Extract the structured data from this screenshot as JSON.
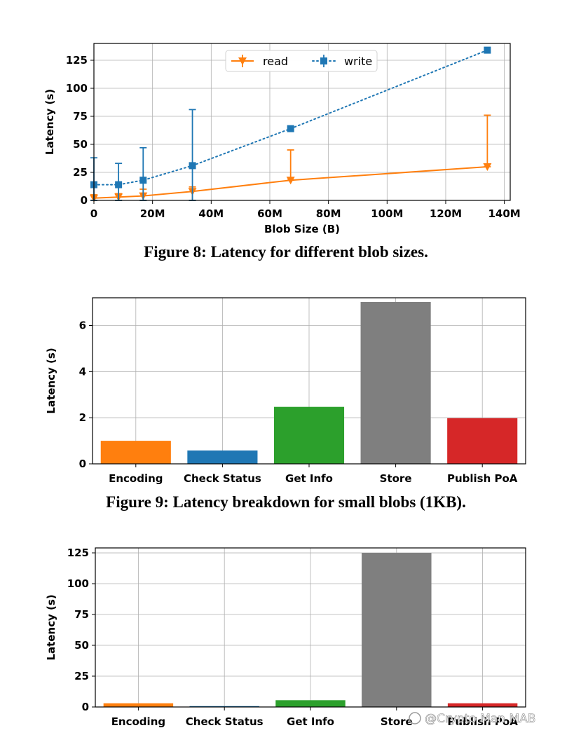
{
  "chart_data": [
    {
      "type": "line",
      "title": "",
      "caption": "Figure 8: Latency for different blob sizes.",
      "xlabel": "Blob Size (B)",
      "ylabel": "Latency (s)",
      "xlim": [
        0,
        142000000
      ],
      "ylim": [
        0,
        140
      ],
      "xticks": [
        0,
        20000000,
        40000000,
        60000000,
        80000000,
        100000000,
        120000000,
        140000000
      ],
      "xtick_labels": [
        "0",
        "20M",
        "40M",
        "60M",
        "80M",
        "100M",
        "120M",
        "140M"
      ],
      "yticks": [
        0,
        25,
        50,
        75,
        100,
        125
      ],
      "ytick_labels": [
        "0",
        "25",
        "50",
        "75",
        "100",
        "125"
      ],
      "grid": true,
      "legend_position": "top-center",
      "series": [
        {
          "name": "read",
          "color": "#ff7f0e",
          "marker": "triangle-down",
          "linestyle": "solid",
          "x": [
            0,
            8400000,
            16800000,
            33600000,
            67100000,
            134200000
          ],
          "y": [
            2,
            3,
            4,
            8,
            18,
            30
          ],
          "err_low": [
            0,
            0,
            0,
            0,
            18,
            30
          ],
          "err_high": [
            5,
            6,
            10,
            12,
            45,
            76
          ]
        },
        {
          "name": "write",
          "color": "#1f77b4",
          "marker": "square",
          "linestyle": "dotted",
          "x": [
            0,
            8400000,
            16800000,
            33600000,
            67100000,
            134200000
          ],
          "y": [
            14,
            14,
            18,
            31,
            64,
            134
          ],
          "err_low": [
            0,
            0,
            0,
            0,
            64,
            134
          ],
          "err_high": [
            38,
            33,
            47,
            81,
            64,
            134
          ]
        }
      ]
    },
    {
      "type": "bar",
      "title": "",
      "caption": "Figure 9: Latency breakdown for small blobs (1KB).",
      "xlabel": "",
      "ylabel": "Latency (s)",
      "ylim": [
        0,
        7.2
      ],
      "yticks": [
        0,
        2,
        4,
        6
      ],
      "ytick_labels": [
        "0",
        "2",
        "4",
        "6"
      ],
      "grid": true,
      "categories": [
        "Encoding",
        "Check Status",
        "Get Info",
        "Store",
        "Publish PoA"
      ],
      "values": [
        1.0,
        0.58,
        2.47,
        7.02,
        1.98
      ],
      "colors": [
        "#ff7f0e",
        "#1f77b4",
        "#2ca02c",
        "#7f7f7f",
        "#d62728"
      ]
    },
    {
      "type": "bar",
      "title": "",
      "caption": "",
      "xlabel": "",
      "ylabel": "Latency (s)",
      "ylim": [
        0,
        129
      ],
      "yticks": [
        0,
        25,
        50,
        75,
        100,
        125
      ],
      "ytick_labels": [
        "0",
        "25",
        "50",
        "75",
        "100",
        "125"
      ],
      "grid": true,
      "categories": [
        "Encoding",
        "Check Status",
        "Get Info",
        "Store",
        "Publish PoA"
      ],
      "values": [
        3.0,
        0.7,
        5.5,
        125.0,
        3.0
      ],
      "colors": [
        "#ff7f0e",
        "#1f77b4",
        "#2ca02c",
        "#7f7f7f",
        "#d62728"
      ]
    }
  ],
  "watermark": "@Crypto Man MAB"
}
